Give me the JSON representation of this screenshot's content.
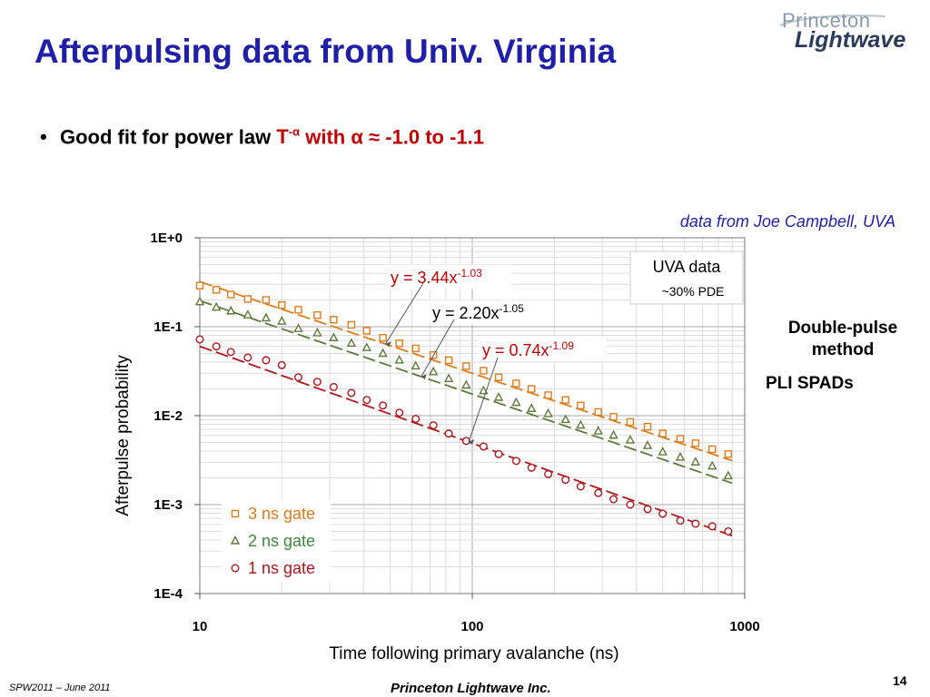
{
  "slide": {
    "title": "Afterpulsing data from Univ. Virginia",
    "logo_line1": "Princeton",
    "logo_line2": "Lightwave",
    "bullet": {
      "text": "Good fit for power law",
      "T": "T",
      "T_exp": "-α",
      "with": "with",
      "alpha_range": "α ≈ -1.0 to -1.1"
    },
    "source_note": "data from Joe Campbell, UVA",
    "side_note_1": "Double-pulse method",
    "side_note_2": "PLI SPADs",
    "footer_left": "SPW2011 – June 2011",
    "footer_center": "Princeton Lightwave Inc.",
    "page_number": "14"
  },
  "colors": {
    "title_blue": "#1f1fa8",
    "red": "#c00000",
    "orange": "#e07b1a",
    "green": "#5e7a3a",
    "darkred": "#b0151b"
  },
  "chart_data": {
    "type": "scatter",
    "x_scale": "log",
    "y_scale": "log",
    "xlabel": "Time following primary avalanche (ns)",
    "ylabel": "Afterpulse probability",
    "xlim": [
      10,
      1000
    ],
    "ylim": [
      0.0001,
      1
    ],
    "x_ticks": [
      10,
      100,
      1000
    ],
    "x_tick_labels": [
      "10",
      "100",
      "1000"
    ],
    "y_ticks": [
      1,
      0.1,
      0.01,
      0.001,
      0.0001
    ],
    "y_tick_labels": [
      "1E+0",
      "1E-1",
      "1E-2",
      "1E-3",
      "1E-4"
    ],
    "grid": true,
    "box_label_1": "UVA data",
    "box_label_2": "~30% PDE",
    "legend_position": "bottom-left",
    "series": [
      {
        "name": "3 ns gate",
        "marker": "square",
        "color": "#e07b1a",
        "x": [
          10,
          11.5,
          13,
          15,
          17.5,
          20,
          23,
          27,
          31,
          36,
          41,
          47,
          54,
          62,
          72,
          82,
          95,
          110,
          125,
          145,
          165,
          190,
          220,
          250,
          290,
          330,
          380,
          440,
          500,
          580,
          660,
          760,
          870
        ],
        "y": [
          0.29,
          0.26,
          0.23,
          0.205,
          0.2,
          0.175,
          0.155,
          0.135,
          0.12,
          0.105,
          0.09,
          0.075,
          0.065,
          0.057,
          0.048,
          0.042,
          0.036,
          0.032,
          0.027,
          0.023,
          0.02,
          0.017,
          0.015,
          0.013,
          0.011,
          0.0097,
          0.0085,
          0.0075,
          0.0063,
          0.0055,
          0.0049,
          0.0042,
          0.0037
        ],
        "fit_label": "y = 3.44x",
        "fit_exp": "-1.03",
        "fit_a": 3.44,
        "fit_b": -1.03
      },
      {
        "name": "2 ns gate",
        "marker": "triangle",
        "color": "#5e7a3a",
        "x": [
          10,
          11.5,
          13,
          15,
          17.5,
          20,
          23,
          27,
          31,
          36,
          41,
          47,
          54,
          62,
          72,
          82,
          95,
          110,
          125,
          145,
          165,
          190,
          220,
          250,
          290,
          330,
          380,
          440,
          500,
          580,
          660,
          760,
          870
        ],
        "y": [
          0.19,
          0.165,
          0.15,
          0.135,
          0.125,
          0.115,
          0.095,
          0.085,
          0.075,
          0.065,
          0.058,
          0.05,
          0.042,
          0.036,
          0.031,
          0.026,
          0.022,
          0.019,
          0.016,
          0.014,
          0.012,
          0.0105,
          0.009,
          0.0078,
          0.0067,
          0.006,
          0.0053,
          0.0046,
          0.0039,
          0.0034,
          0.003,
          0.0027,
          0.0021
        ],
        "fit_label": "y = 2.20x",
        "fit_exp": "-1.05",
        "fit_a": 2.2,
        "fit_b": -1.05
      },
      {
        "name": "1 ns gate",
        "marker": "circle",
        "color": "#b0151b",
        "x": [
          10,
          11.5,
          13,
          15,
          17.5,
          20,
          23,
          27,
          31,
          36,
          41,
          47,
          54,
          62,
          72,
          82,
          95,
          110,
          125,
          145,
          165,
          190,
          220,
          250,
          290,
          330,
          380,
          440,
          500,
          580,
          660,
          760,
          870
        ],
        "y": [
          0.072,
          0.06,
          0.052,
          0.045,
          0.042,
          0.037,
          0.027,
          0.024,
          0.021,
          0.018,
          0.015,
          0.013,
          0.0108,
          0.0092,
          0.0078,
          0.0063,
          0.0052,
          0.0045,
          0.0037,
          0.0031,
          0.0026,
          0.0022,
          0.0019,
          0.0016,
          0.00135,
          0.00115,
          0.001,
          0.00089,
          0.00079,
          0.00066,
          0.00061,
          0.00057,
          0.0005
        ],
        "fit_label": "y = 0.74x",
        "fit_exp": "-1.09",
        "fit_a": 0.74,
        "fit_b": -1.09
      }
    ]
  }
}
